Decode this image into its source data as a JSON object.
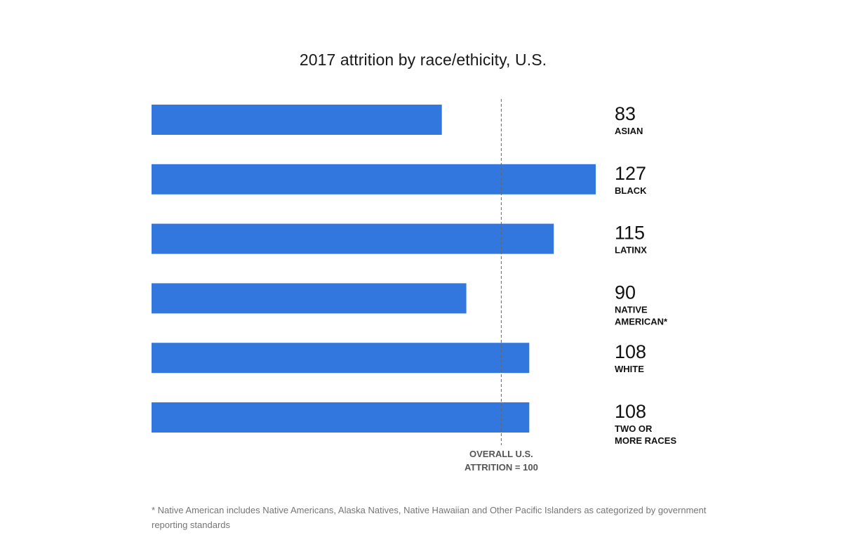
{
  "chart_data": {
    "type": "bar",
    "orientation": "horizontal",
    "title": "2017 attrition by race/ethicity, U.S.",
    "categories": [
      "ASIAN",
      "BLACK",
      "LATINX",
      "NATIVE AMERICAN*",
      "WHITE",
      "TWO OR MORE RACES"
    ],
    "category_lines": [
      [
        "ASIAN"
      ],
      [
        "BLACK"
      ],
      [
        "LATINX"
      ],
      [
        "NATIVE",
        "AMERICAN*"
      ],
      [
        "WHITE"
      ],
      [
        "TWO OR",
        "MORE RACES"
      ]
    ],
    "values": [
      83,
      127,
      115,
      90,
      108,
      108
    ],
    "xlim": [
      0,
      127
    ],
    "bar_color": "#3277de",
    "grid": false,
    "reference_line": {
      "value": 100,
      "label_lines": [
        "OVERALL U.S.",
        "ATTRITION = 100"
      ]
    }
  },
  "footnote": "* Native American includes Native Americans, Alaska Natives, Native Hawaiian and Other Pacific Islanders as categorized by government reporting standards"
}
